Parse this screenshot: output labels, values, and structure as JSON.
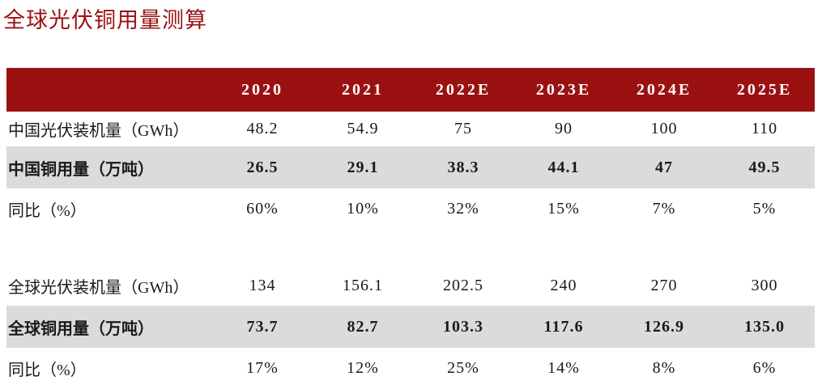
{
  "title": "全球光伏铜用量测算",
  "colors": {
    "header_bg": "#9b1111",
    "title_text": "#9b1111",
    "highlight_row_bg": "#dbdbdb",
    "header_text": "#ffffff"
  },
  "table": {
    "columns": [
      "",
      "2020",
      "2021",
      "2022E",
      "2023E",
      "2024E",
      "2025E"
    ],
    "rows": [
      {
        "label": "中国光伏装机量（GWh）",
        "values": [
          "48.2",
          "54.9",
          "75",
          "90",
          "100",
          "110"
        ],
        "style": "normal"
      },
      {
        "label": "中国铜用量（万吨）",
        "values": [
          "26.5",
          "29.1",
          "38.3",
          "44.1",
          "47",
          "49.5"
        ],
        "style": "highlight"
      },
      {
        "label": "同比（%）",
        "values": [
          "60%",
          "10%",
          "32%",
          "15%",
          "7%",
          "5%"
        ],
        "style": "normal"
      },
      {
        "label": "",
        "values": [
          "",
          "",
          "",
          "",
          "",
          ""
        ],
        "style": "spacer"
      },
      {
        "label": "全球光伏装机量（GWh）",
        "values": [
          "134",
          "156.1",
          "202.5",
          "240",
          "270",
          "300"
        ],
        "style": "normal"
      },
      {
        "label": "全球铜用量（万吨）",
        "values": [
          "73.7",
          "82.7",
          "103.3",
          "117.6",
          "126.9",
          "135.0"
        ],
        "style": "highlight"
      },
      {
        "label": "同比（%）",
        "values": [
          "17%",
          "12%",
          "25%",
          "14%",
          "8%",
          "6%"
        ],
        "style": "normal"
      }
    ]
  }
}
